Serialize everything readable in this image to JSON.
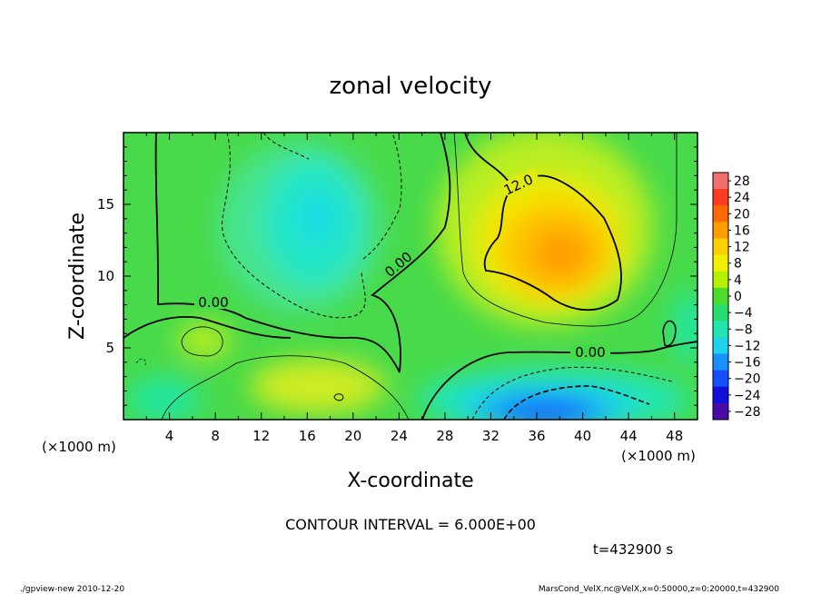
{
  "chart_data": {
    "type": "heatmap",
    "title": "zonal velocity",
    "xlabel": "X-coordinate",
    "ylabel": "Z-coordinate",
    "x_unit": "(×1000 m)",
    "y_unit": "(×1000 m)",
    "xlim": [
      0,
      50
    ],
    "ylim": [
      0,
      20
    ],
    "x_ticks": [
      "4",
      "8",
      "12",
      "16",
      "20",
      "24",
      "28",
      "32",
      "36",
      "40",
      "44",
      "48"
    ],
    "y_ticks": [
      "5",
      "10",
      "15"
    ],
    "colorbar": {
      "labels": [
        "28",
        "24",
        "20",
        "16",
        "12",
        "8",
        "4",
        "0",
        "−4",
        "−8",
        "−12",
        "−16",
        "−20",
        "−24",
        "−28"
      ],
      "colors": [
        "#f07070",
        "#ff3c1e",
        "#ff6a00",
        "#ff9d00",
        "#ffd000",
        "#f0f000",
        "#b4f000",
        "#4cdc2a",
        "#2ada6e",
        "#22e6b0",
        "#1ed2ea",
        "#1890ff",
        "#1450ff",
        "#1010d8",
        "#4a0aa8"
      ]
    },
    "features": [
      {
        "name": "positive max",
        "x": 38,
        "z": 12,
        "value": 18
      },
      {
        "name": "negative max",
        "x": 38,
        "z": 1,
        "value": -22
      },
      {
        "name": "negative upper",
        "x": 18,
        "z": 14,
        "value": -9
      }
    ],
    "contour_labels": [
      "0.00",
      "0.00",
      "0.00",
      "12.0"
    ],
    "contour_interval": "CONTOUR INTERVAL = 6.000E+00",
    "time": "t=432900 s"
  },
  "footer": {
    "left": "./gpview-new  2010-12-20",
    "right": "MarsCond_VelX.nc@VelX,x=0:50000,z=0:20000,t=432900"
  }
}
